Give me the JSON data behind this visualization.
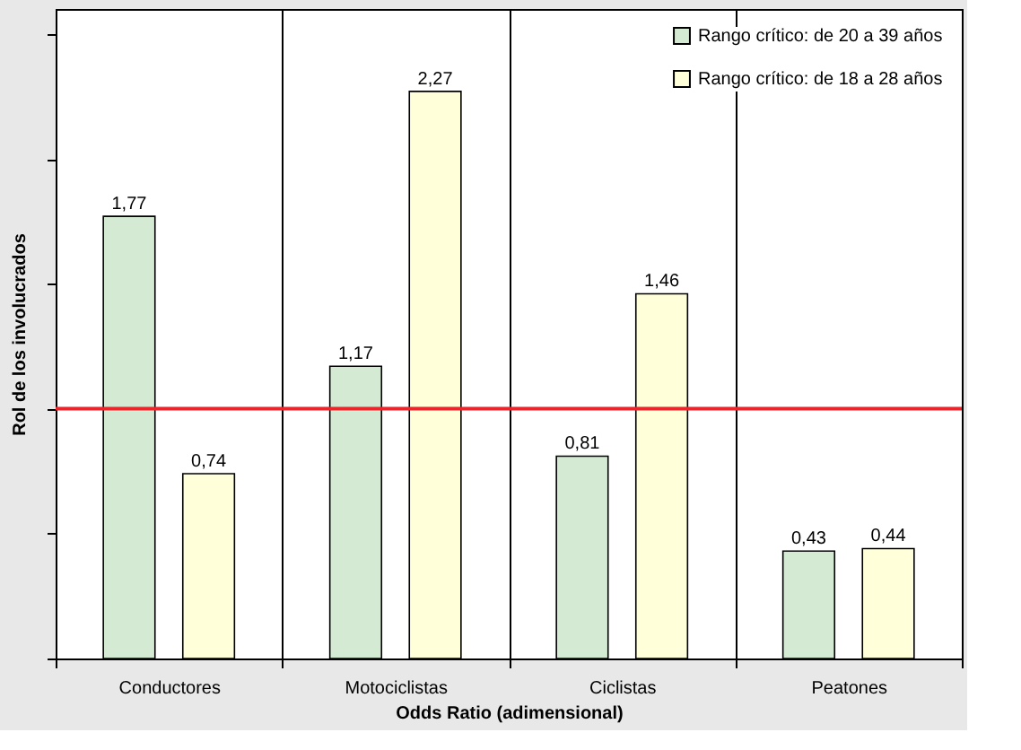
{
  "chart_data": {
    "type": "bar",
    "xlabel": "Odds Ratio (adimensional)",
    "ylabel": "Rol de los involucrados",
    "categories": [
      "Conductores",
      "Motociclistas",
      "Ciclistas",
      "Peatones"
    ],
    "series": [
      {
        "name": "Rango crítico: de 20 a 39 años",
        "color": "#d5ead3",
        "values": [
          1.77,
          1.17,
          0.81,
          0.43
        ],
        "value_labels": [
          "1,77",
          "1,17",
          "0,81",
          "0,43"
        ]
      },
      {
        "name": "Rango crítico: de 18 a 28 años",
        "color": "#ffffda",
        "values": [
          0.74,
          2.27,
          1.46,
          0.44
        ],
        "value_labels": [
          "0,74",
          "2,27",
          "1,46",
          "0,44"
        ]
      }
    ],
    "ylim": [
      0,
      2.6
    ],
    "yticks": [
      {
        "value": 0,
        "label": null
      },
      {
        "value": 0.5,
        "label": null
      },
      {
        "value": 1,
        "label": null
      },
      {
        "value": 1.5,
        "label": null
      },
      {
        "value": 2,
        "label": null
      },
      {
        "value": 2.5,
        "label": null
      }
    ],
    "tick_labels": "x",
    "grid": "x",
    "legend": "top right",
    "ref_lines": [
      {
        "axis": "y",
        "value": 1,
        "color": "#e8262b"
      }
    ]
  }
}
